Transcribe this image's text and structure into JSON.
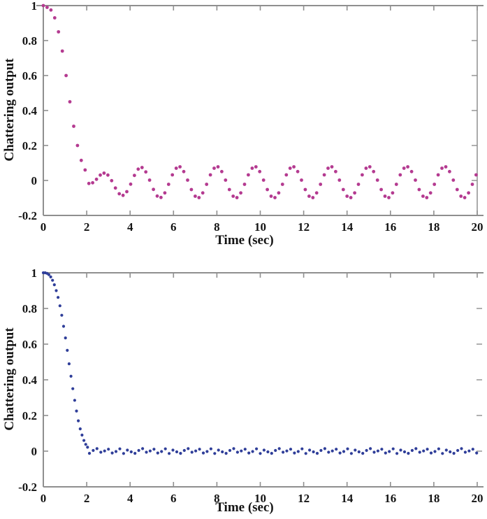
{
  "style": {
    "background": "#ffffff",
    "axis_color": "#8f8f8f",
    "text_color": "#141414"
  },
  "chart_data": [
    {
      "type": "scatter",
      "title": "",
      "xlabel": "Time (sec)",
      "ylabel": "Chattering output",
      "xlim": [
        0,
        20
      ],
      "ylim": [
        -0.2,
        1
      ],
      "grid": false,
      "legend": "none",
      "marker_color": "#b43a90",
      "marker_name": "magenta-dot",
      "x_tick_values": [
        0,
        2,
        4,
        6,
        8,
        10,
        12,
        14,
        16,
        18,
        20
      ],
      "x_tick_labels": [
        "0",
        "2",
        "4",
        "6",
        "8",
        "10",
        "12",
        "14",
        "16",
        "18",
        "20"
      ],
      "y_tick_values": [
        1,
        0.8,
        0.6,
        0.4,
        0.2,
        0,
        -0.2
      ],
      "y_tick_labels": [
        "1",
        "0.8",
        "0.6",
        "0.4",
        "0.2",
        "0",
        "-0.2"
      ],
      "series": {
        "description": "chattering output decaying from 1 then oscillating, period ~1.75 s, peaks ~+0.08, troughs ~-0.10",
        "segments": [
          {
            "t0": 0.0,
            "dt": 0.175,
            "y": [
              1,
              0.99,
              0.975,
              0.93,
              0.85,
              0.74,
              0.6,
              0.45,
              0.31,
              0.2,
              0.115,
              0.06,
              -0.017,
              -0.013,
              0.007,
              0.031,
              0.042,
              0.031,
              -0.001,
              -0.043,
              -0.076,
              -0.085,
              -0.064,
              -0.021,
              0.029,
              0.065,
              0.074,
              0.049,
              0.002,
              -0.051,
              -0.089,
              -0.097,
              -0.071,
              -0.022,
              0.032,
              0.07,
              0.078,
              0.051,
              0.002,
              -0.052,
              -0.09,
              -0.098,
              -0.071,
              -0.022,
              0.032,
              0.07,
              0.078,
              0.051,
              0.002,
              -0.052,
              -0.09,
              -0.098,
              -0.071,
              -0.022,
              0.032,
              0.07,
              0.078,
              0.051,
              0.002,
              -0.052,
              -0.09,
              -0.098,
              -0.071,
              -0.022,
              0.032,
              0.07,
              0.078,
              0.051,
              0.002,
              -0.052,
              -0.09,
              -0.098,
              -0.071,
              -0.022,
              0.032,
              0.07,
              0.078,
              0.051,
              0.002,
              -0.052,
              -0.09,
              -0.098,
              -0.071,
              -0.022,
              0.032,
              0.07,
              0.078,
              0.051,
              0.002,
              -0.052,
              -0.09,
              -0.098,
              -0.071,
              -0.022,
              0.032,
              0.07,
              0.078,
              0.051,
              0.002,
              -0.052,
              -0.09,
              -0.098,
              -0.071,
              -0.022,
              0.032,
              0.07,
              0.078,
              0.051,
              0.002,
              -0.052,
              -0.09,
              -0.098,
              -0.071,
              -0.022,
              0.032
            ]
          }
        ]
      }
    },
    {
      "type": "scatter",
      "title": "",
      "xlabel": "Time (sec)",
      "ylabel": "Chattering output",
      "xlim": [
        0,
        20
      ],
      "ylim": [
        -0.2,
        1
      ],
      "grid": false,
      "legend": "none",
      "marker_color": "#2f3e99",
      "marker_name": "navy-dot",
      "x_tick_values": [
        0,
        2,
        4,
        6,
        8,
        10,
        12,
        14,
        16,
        18,
        20
      ],
      "x_tick_labels": [
        "0",
        "2",
        "4",
        "6",
        "8",
        "10",
        "12",
        "14",
        "16",
        "18",
        "20"
      ],
      "y_tick_values": [
        1,
        0.8,
        0.6,
        0.4,
        0.2,
        0,
        -0.2
      ],
      "y_tick_labels": [
        "1",
        "0.8",
        "0.6",
        "0.4",
        "0.2",
        "0",
        "-0.2"
      ],
      "series": {
        "description": "chattering output decaying from 1 and settling flat near 0 with small noise ~±0.014",
        "segments": [
          {
            "t0": 0.0,
            "dt": 0.085,
            "y": [
              1,
              1.0,
              0.997,
              0.99,
              0.977,
              0.958,
              0.933,
              0.9,
              0.862,
              0.815,
              0.762,
              0.7,
              0.635,
              0.565,
              0.49,
              0.42,
              0.35,
              0.285,
              0.225,
              0.17,
              0.125,
              0.09,
              0.06,
              0.038,
              0.022
            ]
          },
          {
            "t0": 2.125,
            "dt": 0.175,
            "y": [
              -0.012,
              0.004,
              0.014,
              -0.006,
              0.001,
              0.011,
              -0.01,
              -0.002,
              0.013,
              -0.013,
              0.006,
              -0.004,
              -0.012,
              0.004,
              0.014,
              -0.006,
              0.001,
              0.011,
              -0.01,
              -0.002,
              0.013,
              -0.013,
              0.006,
              -0.004,
              -0.012,
              0.004,
              0.014,
              -0.006,
              0.001,
              0.011,
              -0.01,
              -0.002,
              0.013,
              -0.013,
              0.006,
              -0.004,
              -0.012,
              0.004,
              0.014,
              -0.006,
              0.001,
              0.011,
              -0.01,
              -0.002,
              0.013,
              -0.013,
              0.006,
              -0.004,
              -0.012,
              0.004,
              0.014,
              -0.006,
              0.001,
              0.011,
              -0.01,
              -0.002,
              0.013,
              -0.013,
              0.006,
              -0.004,
              -0.012,
              0.004,
              0.014,
              -0.006,
              0.001,
              0.011,
              -0.01,
              -0.002,
              0.013,
              -0.013,
              0.006,
              -0.004,
              -0.012,
              0.004,
              0.014,
              -0.006,
              0.001,
              0.011,
              -0.01,
              -0.002,
              0.013,
              -0.013,
              0.006,
              -0.004,
              -0.012,
              0.004,
              0.014,
              -0.006,
              0.001,
              0.011,
              -0.01,
              -0.002,
              0.013,
              -0.013,
              0.006,
              -0.004,
              -0.012,
              0.004,
              0.014,
              -0.006,
              0.001,
              0.011,
              -0.01
            ]
          }
        ]
      }
    }
  ]
}
